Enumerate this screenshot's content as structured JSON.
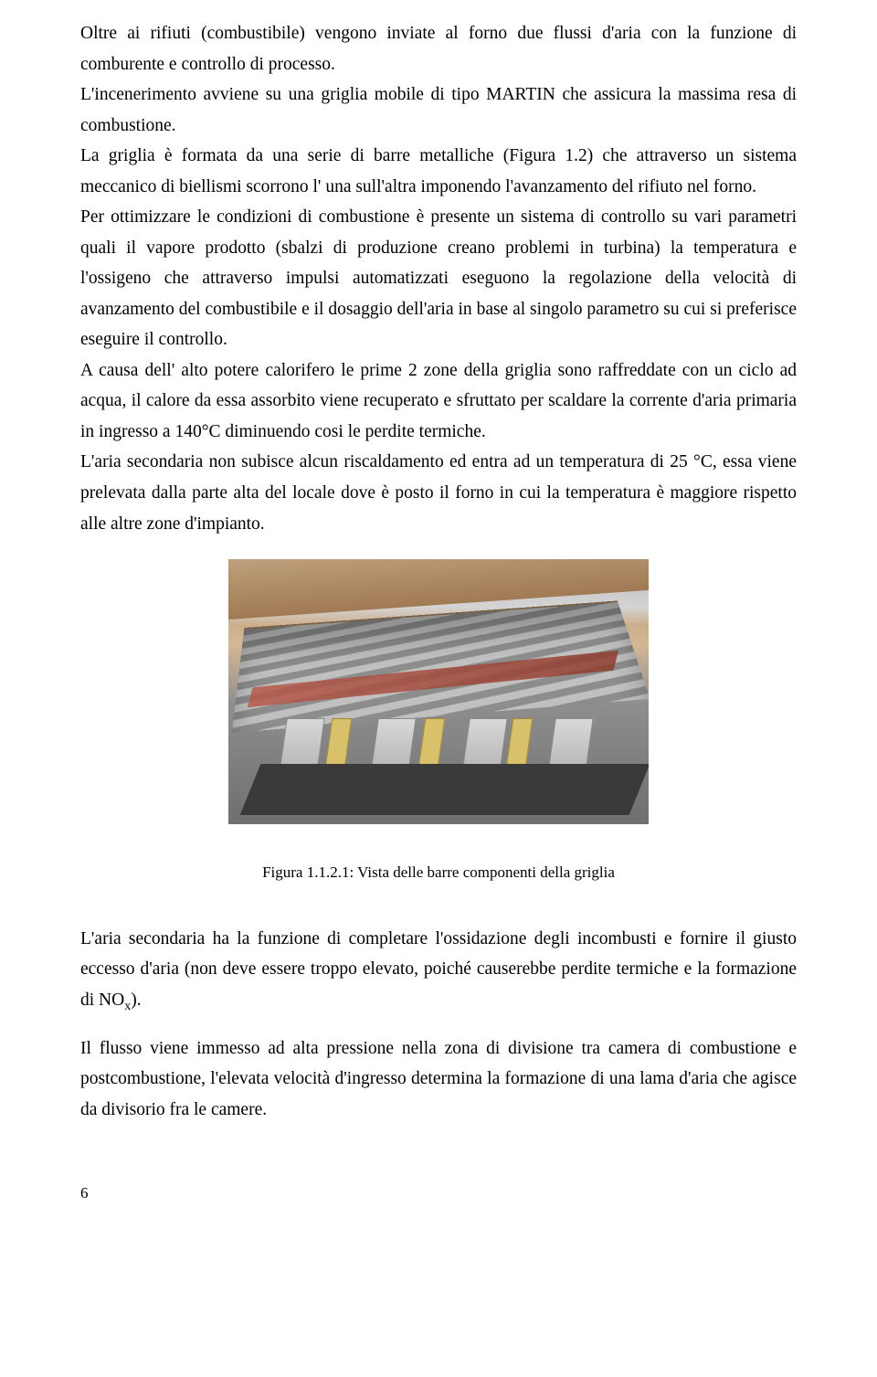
{
  "paragraphs": {
    "p1": "Oltre ai rifiuti (combustibile) vengono inviate al forno due flussi d'aria con la funzione di comburente  e controllo di processo.",
    "p2": "L'incenerimento avviene su una griglia mobile di tipo MARTIN che assicura la massima resa di combustione.",
    "p3": "La griglia è formata da una serie di barre metalliche (Figura 1.2) che attraverso un sistema meccanico di biellismi scorrono l' una sull'altra imponendo l'avanzamento del rifiuto nel forno.",
    "p4": "Per ottimizzare le condizioni di combustione è presente un sistema di controllo su vari parametri quali il vapore prodotto (sbalzi di produzione creano problemi in turbina) la temperatura e l'ossigeno che attraverso impulsi automatizzati eseguono la  regolazione della velocità di avanzamento del combustibile e il dosaggio dell'aria in base al singolo parametro su cui si preferisce eseguire il controllo.",
    "p5": "A causa dell' alto potere calorifero le prime 2 zone della griglia sono raffreddate con un ciclo ad acqua, il calore da essa assorbito viene recuperato e sfruttato per scaldare la corrente d'aria primaria in ingresso a 140°C diminuendo cosi le perdite termiche.",
    "p6": "L'aria secondaria non subisce alcun riscaldamento ed entra ad un temperatura di 25 °C, essa viene prelevata dalla parte alta del locale dove è posto il forno in cui la temperatura è maggiore rispetto alle altre zone d'impianto.",
    "p7": "L'aria secondaria ha la funzione di completare l'ossidazione degli incombusti e fornire il giusto eccesso d'aria (non deve essere troppo elevato, poiché causerebbe perdite termiche e la formazione di NO",
    "p7_sub": "x",
    "p7_tail": ").",
    "p8": "Il flusso viene immesso ad alta pressione nella zona di divisione tra camera di combustione e postcombustione, l'elevata velocità d'ingresso determina la formazione di una lama d'aria che agisce da divisorio fra le camere."
  },
  "figure": {
    "caption": "Figura 1.1.2.1:  Vista delle barre componenti della griglia"
  },
  "page_number": "6"
}
